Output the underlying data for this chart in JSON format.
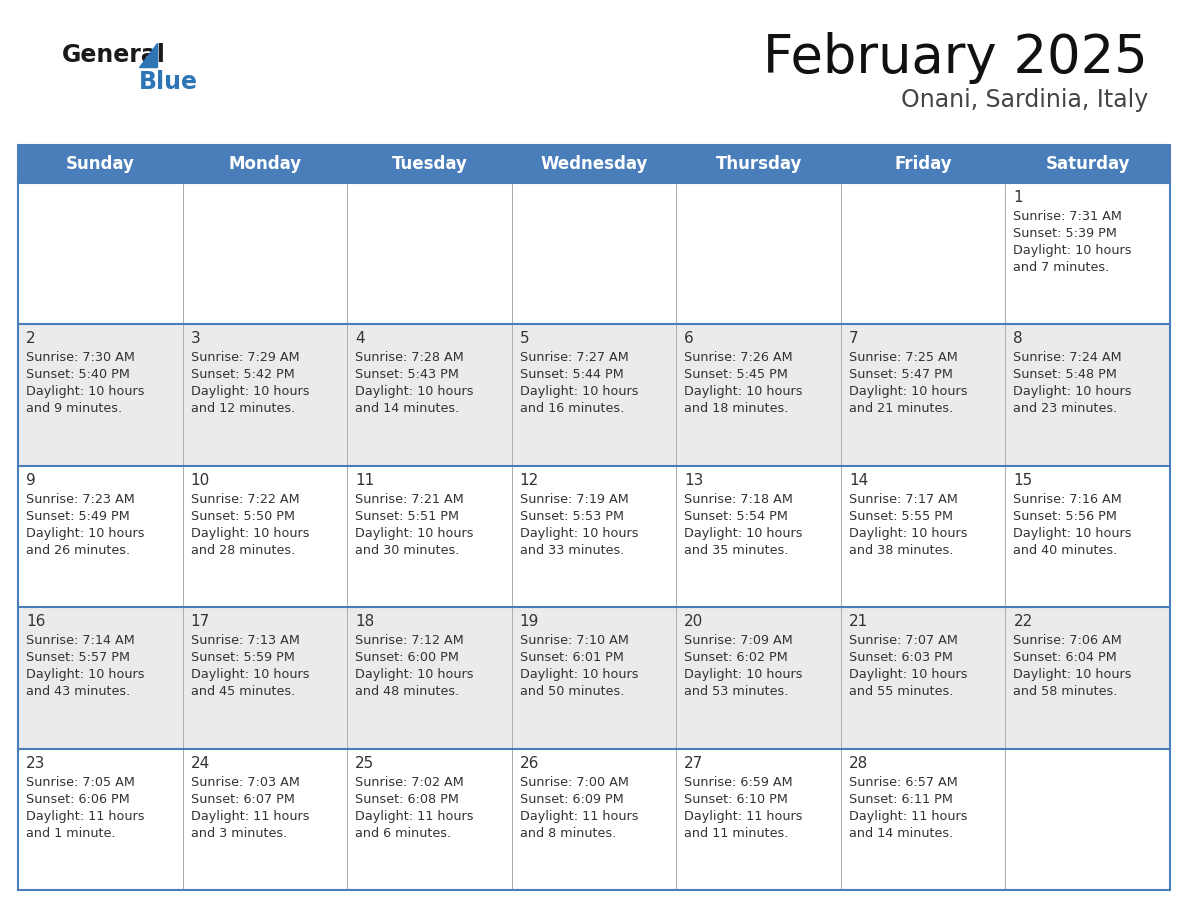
{
  "title": "February 2025",
  "subtitle": "Onani, Sardinia, Italy",
  "header_bg": "#4A7EBB",
  "header_text_color": "#FFFFFF",
  "day_names": [
    "Sunday",
    "Monday",
    "Tuesday",
    "Wednesday",
    "Thursday",
    "Friday",
    "Saturday"
  ],
  "title_fontsize": 38,
  "subtitle_fontsize": 17,
  "header_fontsize": 12,
  "cell_fontsize": 9.2,
  "day_num_fontsize": 11,
  "bg_color": "#FFFFFF",
  "row_bg": [
    "#FFFFFF",
    "#EBEBEB",
    "#FFFFFF",
    "#EBEBEB",
    "#FFFFFF"
  ],
  "border_color": "#4A7EBB",
  "sep_color": "#AAAAAA",
  "text_color": "#333333",
  "logo_general_color": "#1a1a1a",
  "logo_blue_color": "#2E75B6",
  "days": [
    {
      "date": 1,
      "col": 6,
      "row": 0,
      "sunrise": "7:31 AM",
      "sunset": "5:39 PM",
      "daylight_line1": "Daylight: 10 hours",
      "daylight_line2": "and 7 minutes."
    },
    {
      "date": 2,
      "col": 0,
      "row": 1,
      "sunrise": "7:30 AM",
      "sunset": "5:40 PM",
      "daylight_line1": "Daylight: 10 hours",
      "daylight_line2": "and 9 minutes."
    },
    {
      "date": 3,
      "col": 1,
      "row": 1,
      "sunrise": "7:29 AM",
      "sunset": "5:42 PM",
      "daylight_line1": "Daylight: 10 hours",
      "daylight_line2": "and 12 minutes."
    },
    {
      "date": 4,
      "col": 2,
      "row": 1,
      "sunrise": "7:28 AM",
      "sunset": "5:43 PM",
      "daylight_line1": "Daylight: 10 hours",
      "daylight_line2": "and 14 minutes."
    },
    {
      "date": 5,
      "col": 3,
      "row": 1,
      "sunrise": "7:27 AM",
      "sunset": "5:44 PM",
      "daylight_line1": "Daylight: 10 hours",
      "daylight_line2": "and 16 minutes."
    },
    {
      "date": 6,
      "col": 4,
      "row": 1,
      "sunrise": "7:26 AM",
      "sunset": "5:45 PM",
      "daylight_line1": "Daylight: 10 hours",
      "daylight_line2": "and 18 minutes."
    },
    {
      "date": 7,
      "col": 5,
      "row": 1,
      "sunrise": "7:25 AM",
      "sunset": "5:47 PM",
      "daylight_line1": "Daylight: 10 hours",
      "daylight_line2": "and 21 minutes."
    },
    {
      "date": 8,
      "col": 6,
      "row": 1,
      "sunrise": "7:24 AM",
      "sunset": "5:48 PM",
      "daylight_line1": "Daylight: 10 hours",
      "daylight_line2": "and 23 minutes."
    },
    {
      "date": 9,
      "col": 0,
      "row": 2,
      "sunrise": "7:23 AM",
      "sunset": "5:49 PM",
      "daylight_line1": "Daylight: 10 hours",
      "daylight_line2": "and 26 minutes."
    },
    {
      "date": 10,
      "col": 1,
      "row": 2,
      "sunrise": "7:22 AM",
      "sunset": "5:50 PM",
      "daylight_line1": "Daylight: 10 hours",
      "daylight_line2": "and 28 minutes."
    },
    {
      "date": 11,
      "col": 2,
      "row": 2,
      "sunrise": "7:21 AM",
      "sunset": "5:51 PM",
      "daylight_line1": "Daylight: 10 hours",
      "daylight_line2": "and 30 minutes."
    },
    {
      "date": 12,
      "col": 3,
      "row": 2,
      "sunrise": "7:19 AM",
      "sunset": "5:53 PM",
      "daylight_line1": "Daylight: 10 hours",
      "daylight_line2": "and 33 minutes."
    },
    {
      "date": 13,
      "col": 4,
      "row": 2,
      "sunrise": "7:18 AM",
      "sunset": "5:54 PM",
      "daylight_line1": "Daylight: 10 hours",
      "daylight_line2": "and 35 minutes."
    },
    {
      "date": 14,
      "col": 5,
      "row": 2,
      "sunrise": "7:17 AM",
      "sunset": "5:55 PM",
      "daylight_line1": "Daylight: 10 hours",
      "daylight_line2": "and 38 minutes."
    },
    {
      "date": 15,
      "col": 6,
      "row": 2,
      "sunrise": "7:16 AM",
      "sunset": "5:56 PM",
      "daylight_line1": "Daylight: 10 hours",
      "daylight_line2": "and 40 minutes."
    },
    {
      "date": 16,
      "col": 0,
      "row": 3,
      "sunrise": "7:14 AM",
      "sunset": "5:57 PM",
      "daylight_line1": "Daylight: 10 hours",
      "daylight_line2": "and 43 minutes."
    },
    {
      "date": 17,
      "col": 1,
      "row": 3,
      "sunrise": "7:13 AM",
      "sunset": "5:59 PM",
      "daylight_line1": "Daylight: 10 hours",
      "daylight_line2": "and 45 minutes."
    },
    {
      "date": 18,
      "col": 2,
      "row": 3,
      "sunrise": "7:12 AM",
      "sunset": "6:00 PM",
      "daylight_line1": "Daylight: 10 hours",
      "daylight_line2": "and 48 minutes."
    },
    {
      "date": 19,
      "col": 3,
      "row": 3,
      "sunrise": "7:10 AM",
      "sunset": "6:01 PM",
      "daylight_line1": "Daylight: 10 hours",
      "daylight_line2": "and 50 minutes."
    },
    {
      "date": 20,
      "col": 4,
      "row": 3,
      "sunrise": "7:09 AM",
      "sunset": "6:02 PM",
      "daylight_line1": "Daylight: 10 hours",
      "daylight_line2": "and 53 minutes."
    },
    {
      "date": 21,
      "col": 5,
      "row": 3,
      "sunrise": "7:07 AM",
      "sunset": "6:03 PM",
      "daylight_line1": "Daylight: 10 hours",
      "daylight_line2": "and 55 minutes."
    },
    {
      "date": 22,
      "col": 6,
      "row": 3,
      "sunrise": "7:06 AM",
      "sunset": "6:04 PM",
      "daylight_line1": "Daylight: 10 hours",
      "daylight_line2": "and 58 minutes."
    },
    {
      "date": 23,
      "col": 0,
      "row": 4,
      "sunrise": "7:05 AM",
      "sunset": "6:06 PM",
      "daylight_line1": "Daylight: 11 hours",
      "daylight_line2": "and 1 minute."
    },
    {
      "date": 24,
      "col": 1,
      "row": 4,
      "sunrise": "7:03 AM",
      "sunset": "6:07 PM",
      "daylight_line1": "Daylight: 11 hours",
      "daylight_line2": "and 3 minutes."
    },
    {
      "date": 25,
      "col": 2,
      "row": 4,
      "sunrise": "7:02 AM",
      "sunset": "6:08 PM",
      "daylight_line1": "Daylight: 11 hours",
      "daylight_line2": "and 6 minutes."
    },
    {
      "date": 26,
      "col": 3,
      "row": 4,
      "sunrise": "7:00 AM",
      "sunset": "6:09 PM",
      "daylight_line1": "Daylight: 11 hours",
      "daylight_line2": "and 8 minutes."
    },
    {
      "date": 27,
      "col": 4,
      "row": 4,
      "sunrise": "6:59 AM",
      "sunset": "6:10 PM",
      "daylight_line1": "Daylight: 11 hours",
      "daylight_line2": "and 11 minutes."
    },
    {
      "date": 28,
      "col": 5,
      "row": 4,
      "sunrise": "6:57 AM",
      "sunset": "6:11 PM",
      "daylight_line1": "Daylight: 11 hours",
      "daylight_line2": "and 14 minutes."
    }
  ]
}
